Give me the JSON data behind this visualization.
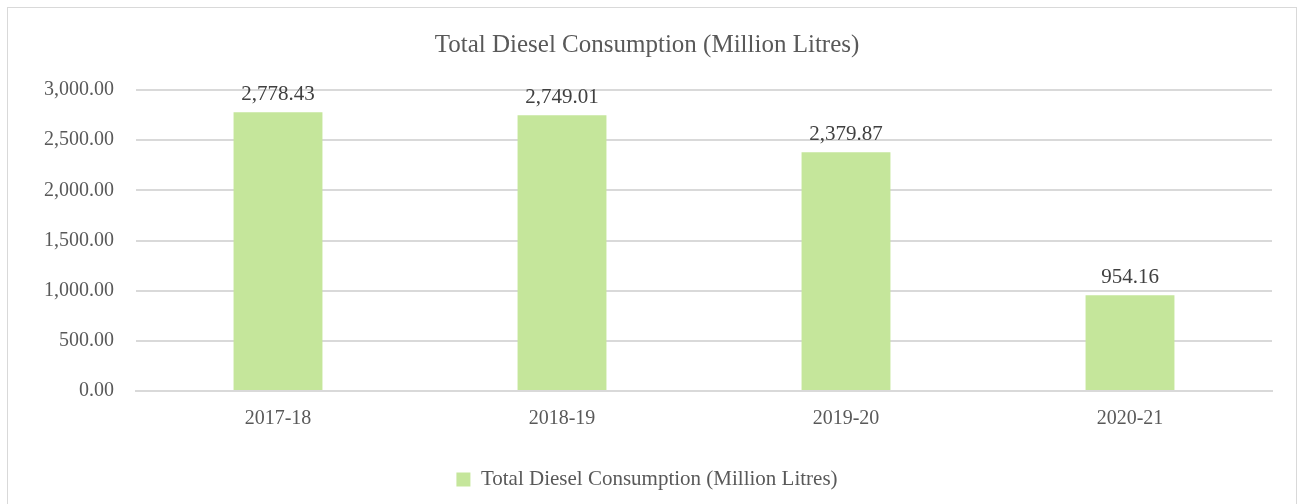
{
  "chart_data": {
    "type": "bar",
    "title": "Total Diesel Consumption (Million Litres)",
    "categories": [
      "2017-18",
      "2018-19",
      "2019-20",
      "2020-21"
    ],
    "series": [
      {
        "name": "Total Diesel Consumption (Million Litres)",
        "color": "#c5e69b",
        "values": [
          2778.43,
          2749.01,
          2379.87,
          954.16
        ],
        "value_labels": [
          "2,778.43",
          "2,749.01",
          "2,379.87",
          "954.16"
        ]
      }
    ],
    "ylim": [
      0,
      3000
    ],
    "yticks": [
      {
        "value": 0,
        "label": "0.00"
      },
      {
        "value": 500,
        "label": "500.00"
      },
      {
        "value": 1000,
        "label": "1,000.00"
      },
      {
        "value": 1500,
        "label": "1,500.00"
      },
      {
        "value": 2000,
        "label": "2,000.00"
      },
      {
        "value": 2500,
        "label": "2,500.00"
      },
      {
        "value": 3000,
        "label": "3,000.00"
      }
    ],
    "grid": "y",
    "legend": "bottom"
  }
}
